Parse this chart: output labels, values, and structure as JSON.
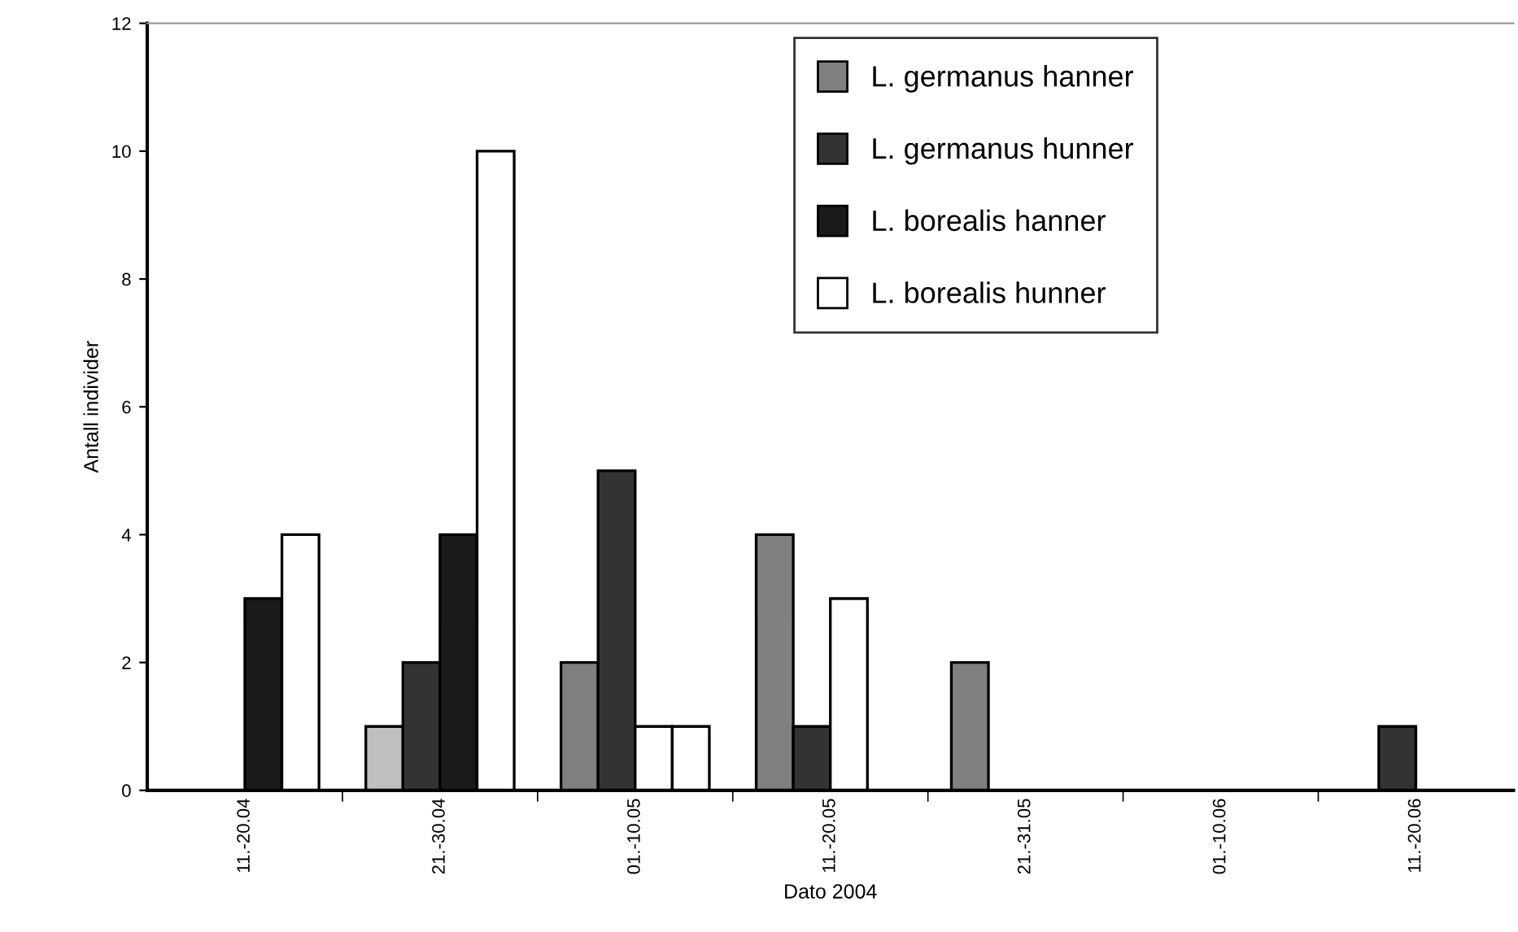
{
  "chart_data": {
    "type": "bar",
    "xlabel": "Dato 2004",
    "ylabel": "Antall individer",
    "categories": [
      "11.-20.04",
      "21.-30.04",
      "01.-10.05",
      "11.-20.05",
      "21.-31.05",
      "01.-10.06",
      "11.-20.06"
    ],
    "series": [
      {
        "name": "L. germanus hanner",
        "color": "#808080",
        "colors": [
          "#808080",
          "#c0c0c0",
          "#808080",
          "#808080",
          "#808080",
          "#808080",
          "#808080"
        ],
        "values": [
          null,
          1,
          2,
          4,
          2,
          null,
          null
        ]
      },
      {
        "name": "L. germanus hunner",
        "color": "#333333",
        "values": [
          null,
          2,
          5,
          1,
          null,
          null,
          1
        ]
      },
      {
        "name": "L. borealis hanner",
        "color": "#1a1a1a",
        "colors": [
          "#1a1a1a",
          "#1a1a1a",
          "#ffffff",
          "#ffffff",
          "#1a1a1a",
          "#1a1a1a",
          "#1a1a1a"
        ],
        "values": [
          3,
          4,
          1,
          3,
          null,
          null,
          null
        ]
      },
      {
        "name": "L. borealis hunner",
        "color": "#ffffff",
        "values": [
          4,
          10,
          1,
          null,
          null,
          null,
          null
        ]
      }
    ],
    "ylim": [
      0,
      12
    ],
    "yticks": [
      0,
      2,
      4,
      6,
      8,
      10,
      12
    ],
    "grid": false,
    "legend": "top right"
  }
}
